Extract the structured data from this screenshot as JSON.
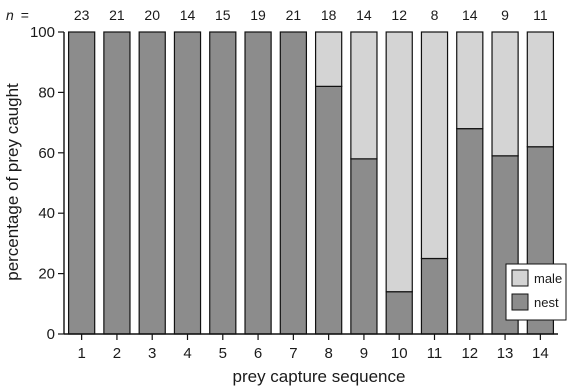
{
  "chart_data": {
    "type": "bar",
    "stacked": true,
    "xlabel": "prey capture sequence",
    "ylabel": "percentage of prey caught",
    "ylim": [
      0,
      100
    ],
    "yticks": [
      0,
      20,
      40,
      60,
      80,
      100
    ],
    "categories": [
      "1",
      "2",
      "3",
      "4",
      "5",
      "6",
      "7",
      "8",
      "9",
      "10",
      "11",
      "12",
      "13",
      "14"
    ],
    "n_prefix": "n",
    "n_equals": "=",
    "n_values": [
      "23",
      "21",
      "20",
      "14",
      "15",
      "19",
      "21",
      "18",
      "14",
      "12",
      "8",
      "14",
      "9",
      "11"
    ],
    "series": [
      {
        "name": "nest",
        "color": "#8c8c8c",
        "values": [
          100,
          100,
          100,
          100,
          100,
          100,
          100,
          82,
          58,
          14,
          25,
          68,
          59,
          62
        ]
      },
      {
        "name": "male",
        "color": "#d4d4d4",
        "values": [
          0,
          0,
          0,
          0,
          0,
          0,
          0,
          18,
          42,
          86,
          75,
          32,
          41,
          38
        ]
      }
    ],
    "legend": {
      "position": "bottom-right",
      "entries": [
        {
          "label": "male",
          "color": "#d4d4d4"
        },
        {
          "label": "nest",
          "color": "#8c8c8c"
        }
      ]
    },
    "grid": false
  }
}
